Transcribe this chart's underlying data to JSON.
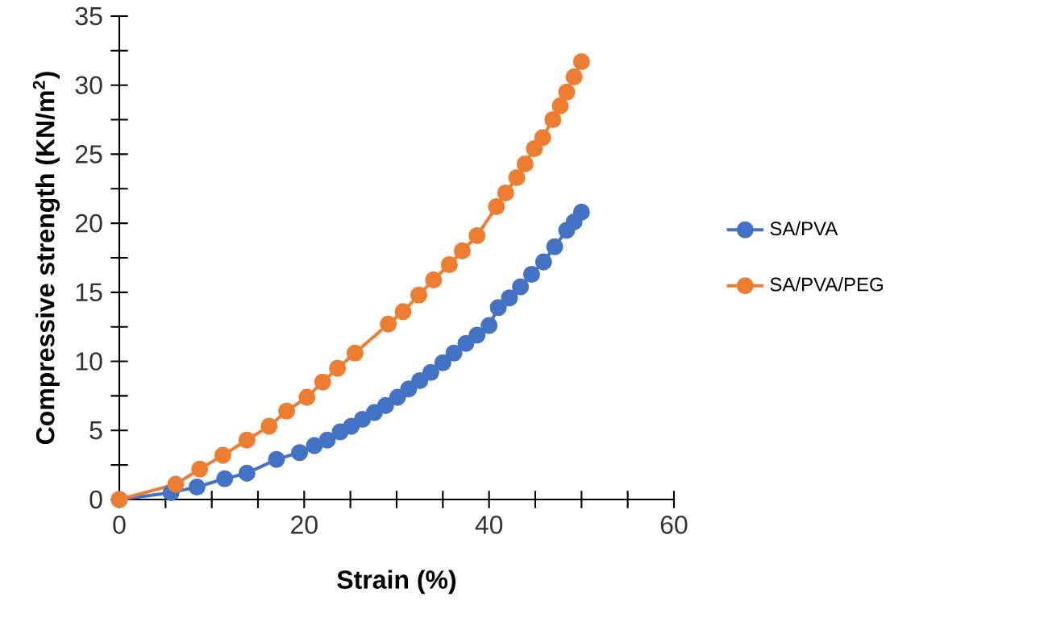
{
  "chart_data": {
    "type": "line",
    "xlabel": "Strain (%)",
    "ylabel": "Compressive strength (KN/m$^{2}$)",
    "marker": "circle",
    "line_style": "solid",
    "legend": "right",
    "grid": false,
    "xlim": [
      0,
      60
    ],
    "xticks": [
      0,
      {
        "value": 5,
        "label": null
      },
      {
        "value": 10,
        "label": null
      },
      {
        "value": 15,
        "label": null
      },
      20,
      {
        "value": 25,
        "label": null
      },
      {
        "value": 30,
        "label": null
      },
      {
        "value": 35,
        "label": null
      },
      40,
      {
        "value": 45,
        "label": null
      },
      {
        "value": 50,
        "label": null
      },
      {
        "value": 55,
        "label": null
      },
      60
    ],
    "ylim": [
      0,
      35
    ],
    "yticks": [
      0,
      {
        "value": 2.5,
        "label": null
      },
      5,
      {
        "value": 7.5,
        "label": null
      },
      10,
      {
        "value": 12.5,
        "label": null
      },
      15,
      {
        "value": 17.5,
        "label": null
      },
      20,
      {
        "value": 22.5,
        "label": null
      },
      25,
      {
        "value": 27.5,
        "label": null
      },
      30,
      {
        "value": 32.5,
        "label": null
      },
      35
    ],
    "series": [
      {
        "name": "SA/PVA",
        "color": "#4472c4",
        "x": [
          0,
          5.6,
          8.4,
          11.4,
          13.8,
          17.0,
          19.5,
          21.1,
          22.5,
          23.9,
          25.1,
          26.3,
          27.6,
          28.8,
          30.1,
          31.3,
          32.5,
          33.7,
          35.0,
          36.2,
          37.5,
          38.7,
          40.0,
          41.0,
          42.2,
          43.4,
          44.6,
          45.9,
          47.1,
          48.4,
          49.2,
          50.0
        ],
        "values": [
          0,
          0.5,
          0.9,
          1.5,
          1.9,
          2.9,
          3.4,
          3.9,
          4.3,
          4.9,
          5.3,
          5.8,
          6.3,
          6.8,
          7.4,
          8.0,
          8.6,
          9.2,
          9.9,
          10.6,
          11.3,
          11.9,
          12.6,
          13.9,
          14.6,
          15.4,
          16.3,
          17.2,
          18.3,
          19.5,
          20.1,
          20.8
        ]
      },
      {
        "name": "SA/PVA/PEG",
        "color": "#ed7d31",
        "x": [
          0,
          6.1,
          8.7,
          11.2,
          13.8,
          16.2,
          18.1,
          20.3,
          22.0,
          23.6,
          25.5,
          29.1,
          30.7,
          32.4,
          34.0,
          35.7,
          37.1,
          38.7,
          40.8,
          41.8,
          43.0,
          43.9,
          44.9,
          45.8,
          46.9,
          47.7,
          48.4,
          49.2,
          50.0
        ],
        "values": [
          0,
          1.1,
          2.2,
          3.2,
          4.3,
          5.3,
          6.4,
          7.4,
          8.5,
          9.5,
          10.6,
          12.7,
          13.6,
          14.8,
          15.9,
          17.0,
          18.0,
          19.1,
          21.2,
          22.2,
          23.3,
          24.3,
          25.4,
          26.2,
          27.5,
          28.5,
          29.5,
          30.6,
          31.7
        ]
      }
    ]
  }
}
